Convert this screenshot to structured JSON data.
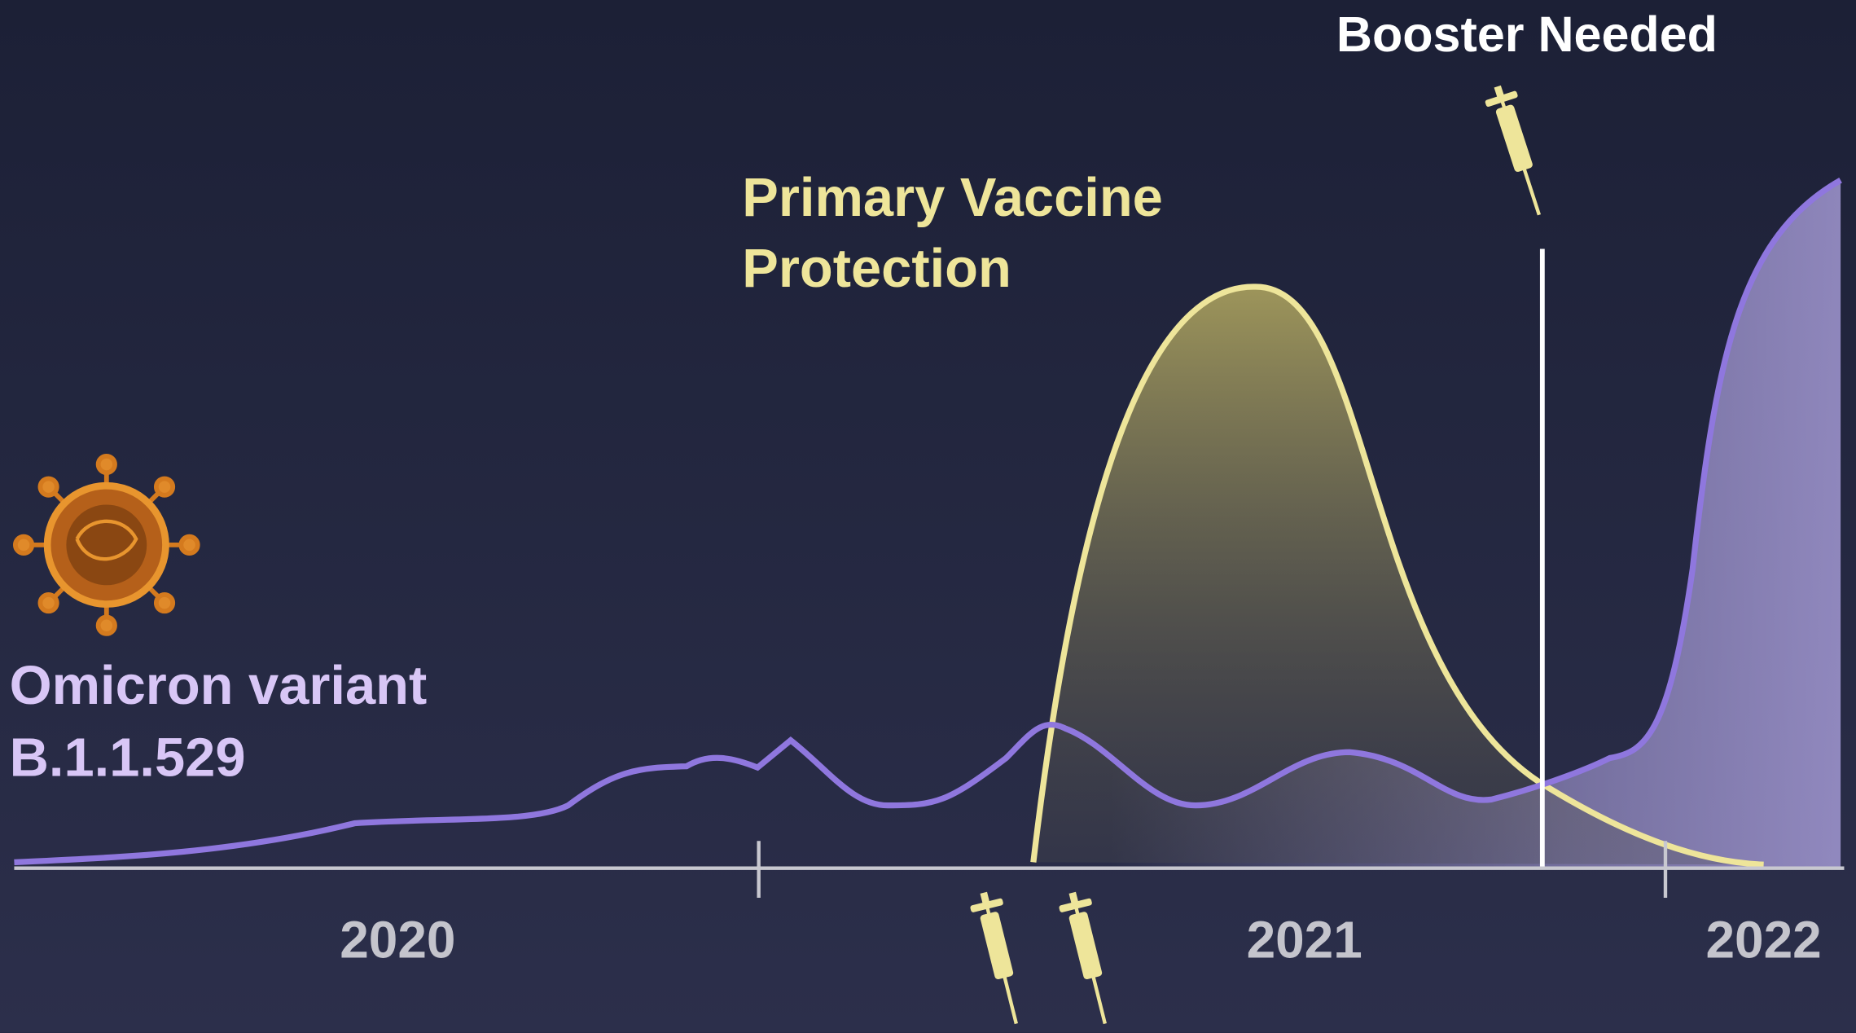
{
  "annotations": {
    "booster": "Booster Needed",
    "primary_vaccine": [
      "Primary Vaccine",
      "Protection"
    ],
    "variant": [
      "Omicron variant",
      "B.1.1.529"
    ]
  },
  "timeline": {
    "years": [
      "2020",
      "2021",
      "2022"
    ]
  }
}
